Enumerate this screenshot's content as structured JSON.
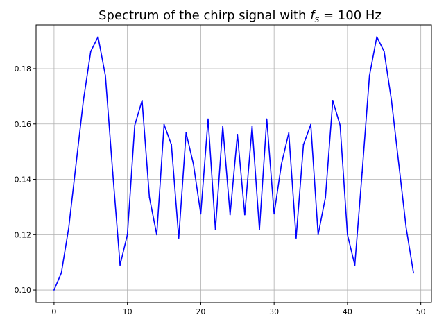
{
  "chart_data": {
    "type": "line",
    "title_prefix": "Spectrum of the chirp signal with ",
    "title_math_var": "f",
    "title_math_sub": "s",
    "title_suffix": " = 100 Hz",
    "xlabel": "",
    "ylabel": "",
    "xlim": [
      -2.45,
      51.45
    ],
    "ylim": [
      0.0955,
      0.1958
    ],
    "xticks": [
      0,
      10,
      20,
      30,
      40,
      50
    ],
    "yticks": [
      0.1,
      0.12,
      0.14,
      0.16,
      0.18
    ],
    "ytick_labels": [
      "0.10",
      "0.12",
      "0.14",
      "0.16",
      "0.18"
    ],
    "grid": true,
    "line_color": "#0000ff",
    "series": [
      {
        "x": [
          0,
          1,
          2,
          3,
          4,
          5,
          6,
          7,
          8,
          9,
          10,
          11,
          12,
          13,
          14,
          15,
          16,
          17,
          18,
          19,
          20,
          21,
          22,
          23,
          24,
          25,
          26,
          27,
          28,
          29,
          30,
          31,
          32,
          33,
          34,
          35,
          36,
          37,
          38,
          39,
          40,
          41,
          42,
          43,
          44,
          45,
          46,
          47,
          48,
          49
        ],
        "values": [
          0.1,
          0.1062,
          0.1225,
          0.1455,
          0.1685,
          0.1862,
          0.1915,
          0.1775,
          0.1425,
          0.109,
          0.12,
          0.1595,
          0.1685,
          0.1335,
          0.12,
          0.1598,
          0.1525,
          0.1188,
          0.1568,
          0.1455,
          0.1275,
          0.1618,
          0.1218,
          0.1592,
          0.1272,
          0.1562,
          0.1272,
          0.1592,
          0.1218,
          0.1618,
          0.1275,
          0.1455,
          0.1568,
          0.1188,
          0.1525,
          0.1598,
          0.12,
          0.1335,
          0.1685,
          0.1595,
          0.12,
          0.109,
          0.1425,
          0.1775,
          0.1915,
          0.1862,
          0.1685,
          0.1455,
          0.1225,
          0.1062
        ]
      }
    ]
  }
}
